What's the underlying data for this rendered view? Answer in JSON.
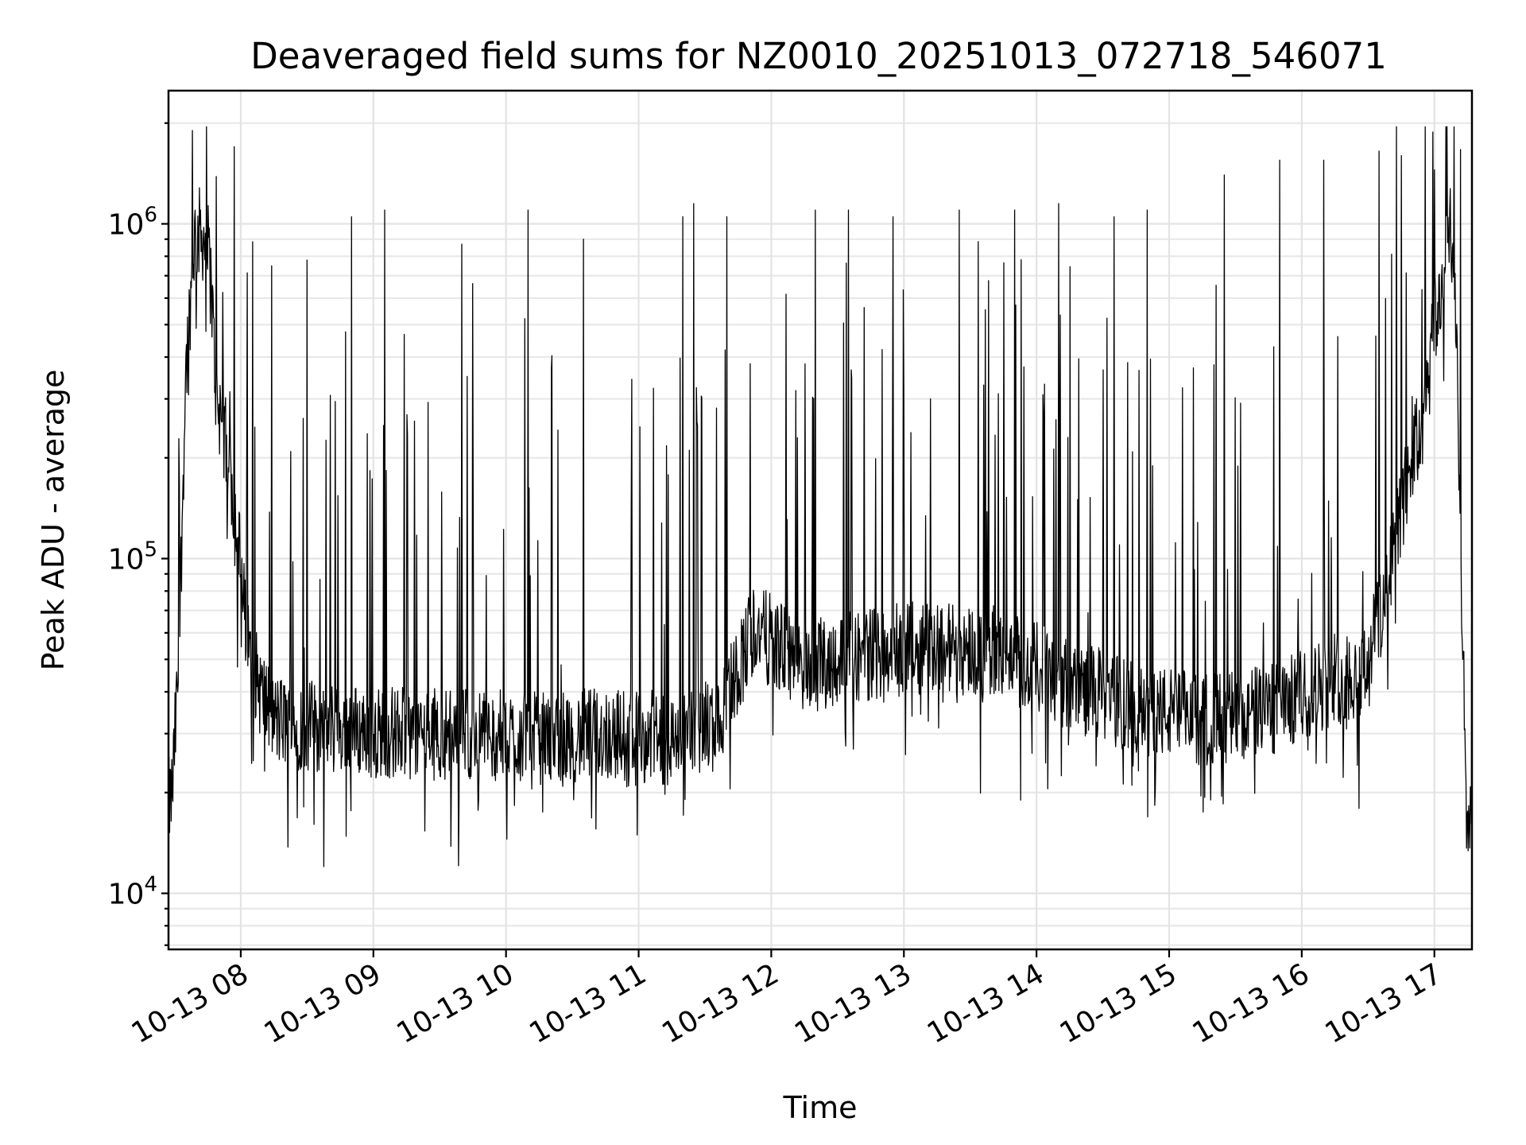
{
  "chart_data": {
    "type": "line",
    "title": "Deaveraged field sums for NZ0010_20251013_072718_546071",
    "xlabel": "Time",
    "ylabel": "Peak ADU - average",
    "y_scale": "log",
    "ylim": [
      6800,
      2500000
    ],
    "xlim": [
      "2025-10-13 07:27:18",
      "2025-10-13 17:17"
    ],
    "grid": true,
    "x_ticks": [
      "10-13 08",
      "10-13 09",
      "10-13 10",
      "10-13 11",
      "10-13 12",
      "10-13 13",
      "10-13 14",
      "10-13 15",
      "10-13 16",
      "10-13 17"
    ],
    "y_ticks": [
      {
        "base": "10",
        "exp": "4",
        "value": 10000
      },
      {
        "base": "10",
        "exp": "5",
        "value": 100000
      },
      {
        "base": "10",
        "exp": "6",
        "value": 1000000
      }
    ],
    "series": [
      {
        "color": "#000000",
        "x": [
          "2025-10-13 07:27",
          "2025-10-13 07:29",
          "2025-10-13 07:32",
          "2025-10-13 07:35",
          "2025-10-13 07:39",
          "2025-10-13 07:42",
          "2025-10-13 07:46",
          "2025-10-13 07:49",
          "2025-10-13 07:52",
          "2025-10-13 07:55",
          "2025-10-13 07:58",
          "2025-10-13 08:03",
          "2025-10-13 08:09",
          "2025-10-13 08:15",
          "2025-10-13 08:25",
          "2025-10-13 08:45",
          "2025-10-13 09:15",
          "2025-10-13 09:45",
          "2025-10-13 10:15",
          "2025-10-13 10:45",
          "2025-10-13 11:15",
          "2025-10-13 11:35",
          "2025-10-13 11:52",
          "2025-10-13 12:15",
          "2025-10-13 12:45",
          "2025-10-13 13:15",
          "2025-10-13 13:45",
          "2025-10-13 14:15",
          "2025-10-13 14:45",
          "2025-10-13 15:15",
          "2025-10-13 15:45",
          "2025-10-13 16:15",
          "2025-10-13 16:27",
          "2025-10-13 16:35",
          "2025-10-13 16:43",
          "2025-10-13 16:50",
          "2025-10-13 16:56",
          "2025-10-13 17:00",
          "2025-10-13 17:04",
          "2025-10-13 17:07",
          "2025-10-13 17:10",
          "2025-10-13 17:12",
          "2025-10-13 17:15",
          "2025-10-13 17:17"
        ],
        "y": [
          18000,
          20000,
          50000,
          350000,
          900000,
          950000,
          800000,
          300000,
          250000,
          180000,
          130000,
          55000,
          40000,
          33000,
          32000,
          31000,
          30000,
          30000,
          29000,
          30000,
          29000,
          32000,
          62000,
          48000,
          52000,
          55000,
          52000,
          42000,
          36000,
          33000,
          35000,
          44000,
          45000,
          65000,
          120000,
          200000,
          270000,
          500000,
          650000,
          1100000,
          500000,
          90000,
          13000,
          22000
        ],
        "spike_peaks": [
          {
            "x": "2025-10-13 07:38",
            "y": 1900000
          },
          {
            "x": "2025-10-13 07:57",
            "y": 1700000
          },
          {
            "x": "2025-10-13 08:30",
            "y": 780000
          },
          {
            "x": "2025-10-13 08:50",
            "y": 1050000
          },
          {
            "x": "2025-10-13 09:05",
            "y": 1100000
          },
          {
            "x": "2025-10-13 09:40",
            "y": 870000
          },
          {
            "x": "2025-10-13 10:10",
            "y": 1100000
          },
          {
            "x": "2025-10-13 10:35",
            "y": 900000
          },
          {
            "x": "2025-10-13 11:20",
            "y": 1050000
          },
          {
            "x": "2025-10-13 11:25",
            "y": 1150000
          },
          {
            "x": "2025-10-13 11:40",
            "y": 1050000
          },
          {
            "x": "2025-10-13 12:20",
            "y": 1100000
          },
          {
            "x": "2025-10-13 12:35",
            "y": 1100000
          },
          {
            "x": "2025-10-13 12:55",
            "y": 1050000
          },
          {
            "x": "2025-10-13 13:25",
            "y": 1100000
          },
          {
            "x": "2025-10-13 13:50",
            "y": 1100000
          },
          {
            "x": "2025-10-13 14:10",
            "y": 1150000
          },
          {
            "x": "2025-10-13 14:35",
            "y": 1050000
          },
          {
            "x": "2025-10-13 14:50",
            "y": 1100000
          },
          {
            "x": "2025-10-13 15:25",
            "y": 1400000
          },
          {
            "x": "2025-10-13 15:50",
            "y": 1550000
          },
          {
            "x": "2025-10-13 16:10",
            "y": 1550000
          },
          {
            "x": "2025-10-13 16:35",
            "y": 1650000
          },
          {
            "x": "2025-10-13 16:45",
            "y": 1600000
          },
          {
            "x": "2025-10-13 17:00",
            "y": 1450000
          }
        ]
      }
    ]
  }
}
